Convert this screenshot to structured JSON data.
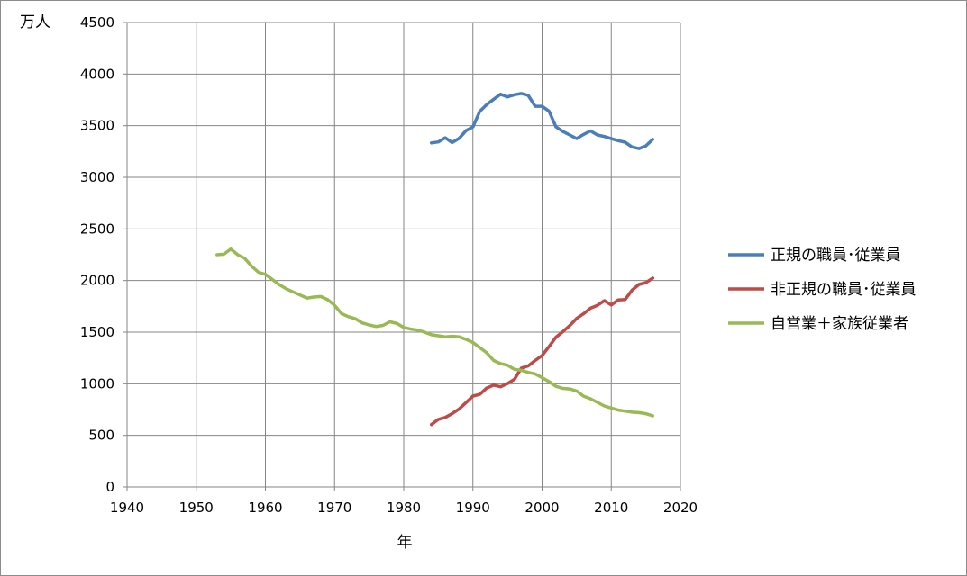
{
  "chart_data": {
    "type": "line",
    "ylabel": "万人",
    "xlabel": "年",
    "xlim": [
      1940,
      2020
    ],
    "ylim": [
      0,
      4500
    ],
    "xticks": [
      "1940",
      "1950",
      "1960",
      "1970",
      "1980",
      "1990",
      "2000",
      "2010",
      "2020"
    ],
    "yticks": [
      "0",
      "500",
      "1000",
      "1500",
      "2000",
      "2500",
      "3000",
      "3500",
      "4000",
      "4500"
    ],
    "grid": true,
    "legend_position": "right",
    "series": [
      {
        "name": "正規の職員･従業員",
        "color": "#4a7ebb",
        "points": [
          [
            1984,
            3333
          ],
          [
            1985,
            3343
          ],
          [
            1986,
            3383
          ],
          [
            1987,
            3337
          ],
          [
            1988,
            3377
          ],
          [
            1989,
            3452
          ],
          [
            1990,
            3488
          ],
          [
            1991,
            3639
          ],
          [
            1992,
            3705
          ],
          [
            1993,
            3756
          ],
          [
            1994,
            3805
          ],
          [
            1995,
            3779
          ],
          [
            1996,
            3800
          ],
          [
            1997,
            3812
          ],
          [
            1998,
            3794
          ],
          [
            1999,
            3688
          ],
          [
            2000,
            3688
          ],
          [
            2001,
            3640
          ],
          [
            2002,
            3489
          ],
          [
            2003,
            3444
          ],
          [
            2004,
            3410
          ],
          [
            2005,
            3375
          ],
          [
            2006,
            3415
          ],
          [
            2007,
            3449
          ],
          [
            2008,
            3410
          ],
          [
            2009,
            3395
          ],
          [
            2010,
            3374
          ],
          [
            2011,
            3355
          ],
          [
            2012,
            3340
          ],
          [
            2013,
            3294
          ],
          [
            2014,
            3278
          ],
          [
            2015,
            3304
          ],
          [
            2016,
            3367
          ]
        ]
      },
      {
        "name": "非正規の職員･従業員",
        "color": "#be4b48",
        "points": [
          [
            1984,
            604
          ],
          [
            1985,
            655
          ],
          [
            1986,
            673
          ],
          [
            1987,
            711
          ],
          [
            1988,
            755
          ],
          [
            1989,
            817
          ],
          [
            1990,
            881
          ],
          [
            1991,
            897
          ],
          [
            1992,
            958
          ],
          [
            1993,
            986
          ],
          [
            1994,
            971
          ],
          [
            1995,
            1001
          ],
          [
            1996,
            1043
          ],
          [
            1997,
            1152
          ],
          [
            1998,
            1173
          ],
          [
            1999,
            1225
          ],
          [
            2000,
            1273
          ],
          [
            2001,
            1360
          ],
          [
            2002,
            1451
          ],
          [
            2003,
            1504
          ],
          [
            2004,
            1564
          ],
          [
            2005,
            1633
          ],
          [
            2006,
            1678
          ],
          [
            2007,
            1732
          ],
          [
            2008,
            1760
          ],
          [
            2009,
            1805
          ],
          [
            2010,
            1763
          ],
          [
            2011,
            1812
          ],
          [
            2012,
            1816
          ],
          [
            2013,
            1906
          ],
          [
            2014,
            1962
          ],
          [
            2015,
            1980
          ],
          [
            2016,
            2023
          ]
        ]
      },
      {
        "name": "自営業＋家族従業者",
        "color": "#98b954",
        "points": [
          [
            1953,
            2250
          ],
          [
            1954,
            2255
          ],
          [
            1955,
            2305
          ],
          [
            1956,
            2250
          ],
          [
            1957,
            2215
          ],
          [
            1958,
            2140
          ],
          [
            1959,
            2080
          ],
          [
            1960,
            2060
          ],
          [
            1961,
            2010
          ],
          [
            1962,
            1960
          ],
          [
            1963,
            1920
          ],
          [
            1964,
            1890
          ],
          [
            1965,
            1860
          ],
          [
            1966,
            1830
          ],
          [
            1967,
            1840
          ],
          [
            1968,
            1845
          ],
          [
            1969,
            1815
          ],
          [
            1970,
            1760
          ],
          [
            1971,
            1680
          ],
          [
            1972,
            1650
          ],
          [
            1973,
            1630
          ],
          [
            1974,
            1590
          ],
          [
            1975,
            1570
          ],
          [
            1976,
            1555
          ],
          [
            1977,
            1565
          ],
          [
            1978,
            1600
          ],
          [
            1979,
            1585
          ],
          [
            1980,
            1545
          ],
          [
            1981,
            1530
          ],
          [
            1982,
            1520
          ],
          [
            1983,
            1500
          ],
          [
            1984,
            1475
          ],
          [
            1985,
            1465
          ],
          [
            1986,
            1455
          ],
          [
            1987,
            1460
          ],
          [
            1988,
            1455
          ],
          [
            1989,
            1430
          ],
          [
            1990,
            1400
          ],
          [
            1991,
            1350
          ],
          [
            1992,
            1300
          ],
          [
            1993,
            1225
          ],
          [
            1994,
            1195
          ],
          [
            1995,
            1180
          ],
          [
            1996,
            1140
          ],
          [
            1997,
            1130
          ],
          [
            1998,
            1110
          ],
          [
            1999,
            1095
          ],
          [
            2000,
            1060
          ],
          [
            2001,
            1020
          ],
          [
            2002,
            975
          ],
          [
            2003,
            955
          ],
          [
            2004,
            950
          ],
          [
            2005,
            930
          ],
          [
            2006,
            880
          ],
          [
            2007,
            855
          ],
          [
            2008,
            820
          ],
          [
            2009,
            785
          ],
          [
            2010,
            765
          ],
          [
            2011,
            745
          ],
          [
            2012,
            735
          ],
          [
            2013,
            725
          ],
          [
            2014,
            720
          ],
          [
            2015,
            710
          ],
          [
            2016,
            690
          ]
        ]
      }
    ]
  }
}
